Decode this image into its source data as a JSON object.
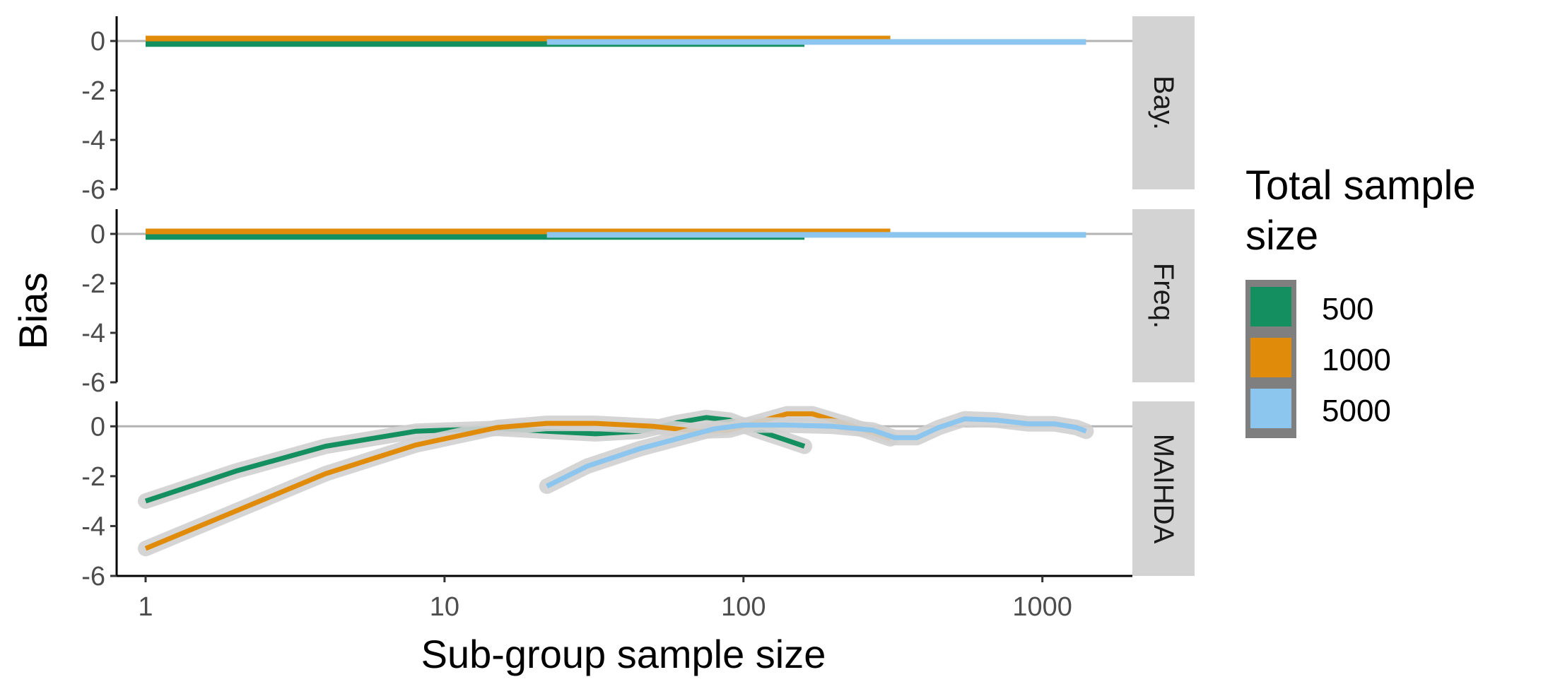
{
  "chart_data": {
    "type": "line",
    "xlabel": "Sub-group sample size",
    "ylabel": "Bias",
    "x_scale": "log10",
    "xlim": [
      0.8,
      2000
    ],
    "x_ticks": [
      1,
      10,
      100,
      1000
    ],
    "x_tick_labels": [
      "1",
      "10",
      "100",
      "1000"
    ],
    "ylim": [
      -6,
      1
    ],
    "y_ticks": [
      0,
      -2,
      -4,
      -6
    ],
    "y_tick_labels": [
      "0",
      "-2",
      "-4",
      "-6"
    ],
    "grid": false,
    "reference_line_y": 0,
    "legend": {
      "title_lines": [
        "Total sample",
        "size"
      ],
      "position": "right",
      "entries": [
        {
          "label": "500",
          "color": "#148F60"
        },
        {
          "label": "1000",
          "color": "#E08C0A"
        },
        {
          "label": "5000",
          "color": "#8CC5EE"
        }
      ]
    },
    "facets": [
      {
        "label": "Bay.",
        "series": [
          {
            "name": "500",
            "color": "#148F60",
            "points": [
              [
                1,
                -0.12
              ],
              [
                160,
                -0.12
              ]
            ]
          },
          {
            "name": "1000",
            "color": "#E08C0A",
            "points": [
              [
                1,
                0.1
              ],
              [
                310,
                0.1
              ]
            ]
          },
          {
            "name": "5000",
            "color": "#8CC5EE",
            "points": [
              [
                22,
                -0.04
              ],
              [
                1400,
                -0.04
              ]
            ]
          }
        ]
      },
      {
        "label": "Freq.",
        "series": [
          {
            "name": "500",
            "color": "#148F60",
            "points": [
              [
                1,
                -0.12
              ],
              [
                160,
                -0.12
              ]
            ]
          },
          {
            "name": "1000",
            "color": "#E08C0A",
            "points": [
              [
                1,
                0.1
              ],
              [
                310,
                0.1
              ]
            ]
          },
          {
            "name": "5000",
            "color": "#8CC5EE",
            "points": [
              [
                22,
                -0.04
              ],
              [
                1400,
                -0.04
              ]
            ]
          }
        ]
      },
      {
        "label": "MAIHDA",
        "series": [
          {
            "name": "500",
            "color": "#148F60",
            "points": [
              [
                1,
                -3.0
              ],
              [
                2,
                -1.8
              ],
              [
                4,
                -0.8
              ],
              [
                8,
                -0.2
              ],
              [
                15,
                -0.08
              ],
              [
                22,
                -0.2
              ],
              [
                32,
                -0.3
              ],
              [
                45,
                -0.2
              ],
              [
                60,
                0.15
              ],
              [
                75,
                0.35
              ],
              [
                90,
                0.25
              ],
              [
                110,
                -0.15
              ],
              [
                135,
                -0.5
              ],
              [
                160,
                -0.8
              ]
            ]
          },
          {
            "name": "1000",
            "color": "#E08C0A",
            "points": [
              [
                1,
                -4.9
              ],
              [
                2,
                -3.4
              ],
              [
                4,
                -1.9
              ],
              [
                8,
                -0.75
              ],
              [
                15,
                -0.05
              ],
              [
                22,
                0.12
              ],
              [
                32,
                0.12
              ],
              [
                50,
                0.0
              ],
              [
                70,
                -0.2
              ],
              [
                90,
                -0.15
              ],
              [
                110,
                0.15
              ],
              [
                140,
                0.5
              ],
              [
                170,
                0.5
              ],
              [
                220,
                0.1
              ],
              [
                310,
                -0.5
              ]
            ]
          },
          {
            "name": "5000",
            "color": "#8CC5EE",
            "points": [
              [
                22,
                -2.4
              ],
              [
                30,
                -1.6
              ],
              [
                45,
                -0.9
              ],
              [
                60,
                -0.5
              ],
              [
                80,
                -0.1
              ],
              [
                100,
                0.05
              ],
              [
                140,
                0.05
              ],
              [
                200,
                0.0
              ],
              [
                270,
                -0.15
              ],
              [
                320,
                -0.45
              ],
              [
                380,
                -0.45
              ],
              [
                450,
                -0.05
              ],
              [
                550,
                0.3
              ],
              [
                700,
                0.25
              ],
              [
                900,
                0.1
              ],
              [
                1100,
                0.1
              ],
              [
                1300,
                -0.05
              ],
              [
                1400,
                -0.2
              ]
            ]
          }
        ]
      }
    ]
  }
}
